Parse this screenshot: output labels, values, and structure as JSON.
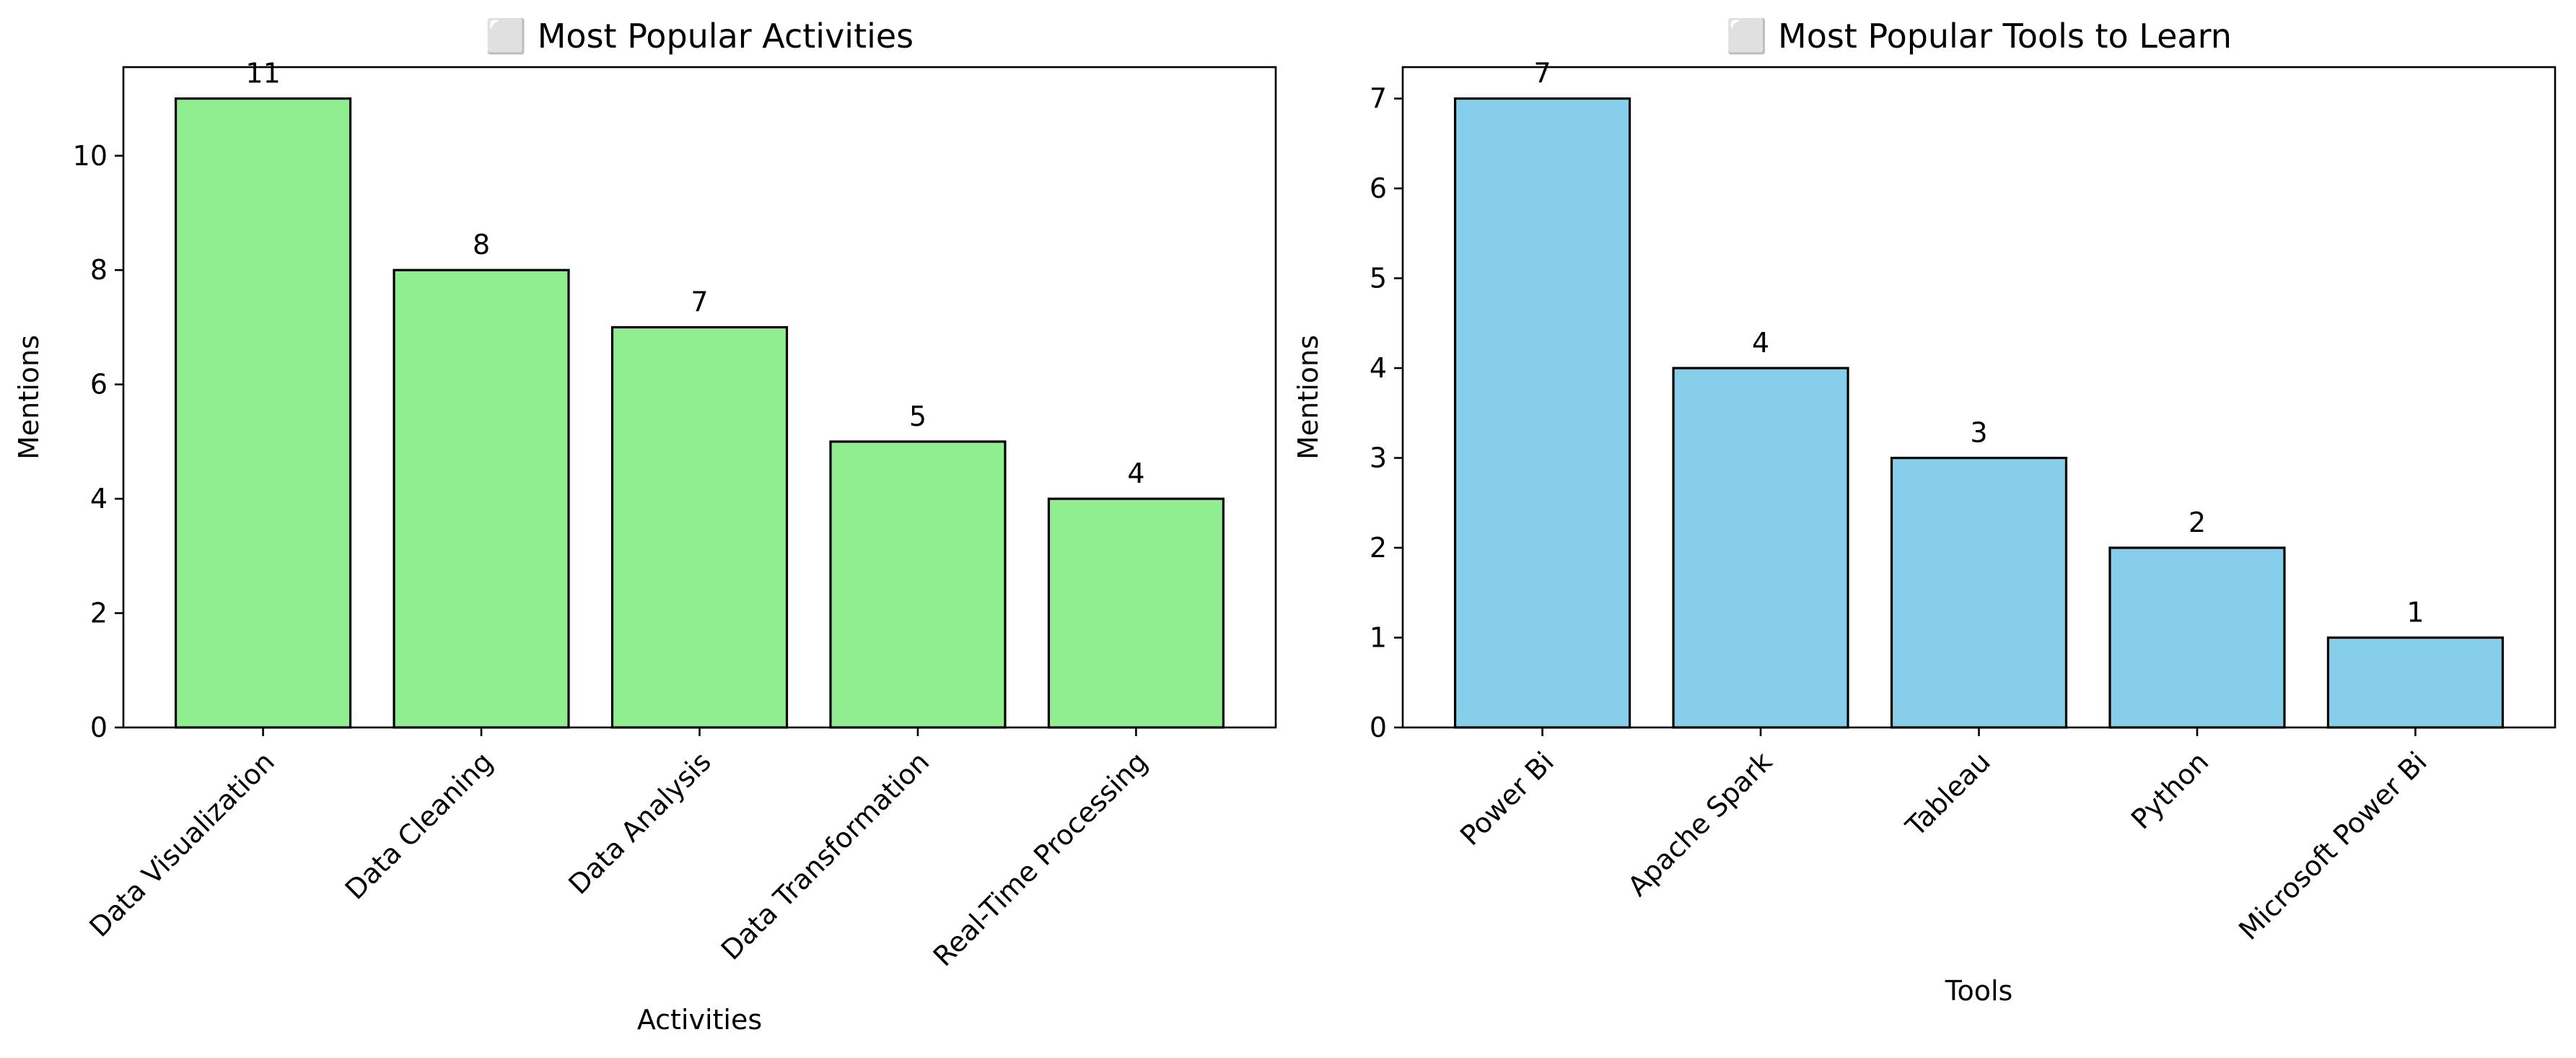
{
  "chart_data": [
    {
      "type": "bar",
      "title": "⬜ Most Popular Activities",
      "xlabel": "Activities",
      "ylabel": "Mentions",
      "categories": [
        "Data Visualization",
        "Data Cleaning",
        "Data Analysis",
        "Data Transformation",
        "Real-Time Processing"
      ],
      "values": [
        11,
        8,
        7,
        5,
        4
      ],
      "ylim": [
        0,
        11.55
      ],
      "yticks": [
        0,
        2,
        4,
        6,
        8,
        10
      ],
      "bar_color": "#90ee90",
      "edge_color": "#000000",
      "grid": false,
      "data_labels": true
    },
    {
      "type": "bar",
      "title": "⬜ Most Popular Tools to Learn",
      "xlabel": "Tools",
      "ylabel": "Mentions",
      "categories": [
        "Power Bi",
        "Apache Spark",
        "Tableau",
        "Python",
        "Microsoft Power Bi"
      ],
      "values": [
        7,
        4,
        3,
        2,
        1
      ],
      "ylim": [
        0,
        7.35
      ],
      "yticks": [
        0,
        1,
        2,
        3,
        4,
        5,
        6,
        7
      ],
      "bar_color": "#87ceeb",
      "edge_color": "#000000",
      "grid": false,
      "data_labels": true
    }
  ]
}
